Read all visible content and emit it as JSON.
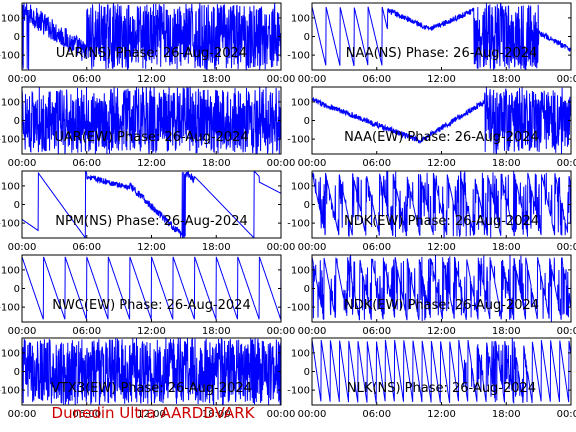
{
  "figure": {
    "footer": "Dunedin Ultra AARDDVARK",
    "colors": {
      "trace": "#0000ff",
      "axis": "#000000",
      "footer": "#cc0000"
    }
  },
  "chart_data": [
    {
      "type": "line",
      "title": "UAR(NS) Phase: 26-Aug-2024",
      "pattern": "dense_late",
      "xlim": [
        0,
        24
      ],
      "ylim": [
        -180,
        180
      ],
      "xticks": [
        "00:00",
        "06:00",
        "12:00",
        "18:00",
        "00:00"
      ],
      "yticks": [
        100,
        0,
        -100
      ]
    },
    {
      "type": "line",
      "title": "NAA(NS) Phase: 26-Aug-2024",
      "pattern": "vshape_ns",
      "xlim": [
        0,
        24
      ],
      "ylim": [
        -180,
        180
      ],
      "xticks": [
        "00:00",
        "06:00",
        "12:00",
        "18:00",
        "00:00"
      ],
      "yticks": [
        100,
        0,
        -100
      ]
    },
    {
      "type": "line",
      "title": "UAR(EW) Phase: 26-Aug-2024",
      "pattern": "dense",
      "xlim": [
        0,
        24
      ],
      "ylim": [
        -180,
        180
      ],
      "xticks": [
        "00:00",
        "06:00",
        "12:00",
        "18:00",
        "00:00"
      ],
      "yticks": [
        100,
        0,
        -100
      ]
    },
    {
      "type": "line",
      "title": "NAA(EW) Phase: 26-Aug-2024",
      "pattern": "vshape_ew",
      "xlim": [
        0,
        24
      ],
      "ylim": [
        -180,
        180
      ],
      "xticks": [
        "00:00",
        "06:00",
        "12:00",
        "18:00",
        "00:00"
      ],
      "yticks": [
        100,
        0,
        -100
      ]
    },
    {
      "type": "line",
      "title": "NPM(NS) Phase: 26-Aug-2024",
      "pattern": "npm",
      "xlim": [
        0,
        24
      ],
      "ylim": [
        -180,
        180
      ],
      "xticks": [
        "00:00",
        "06:00",
        "12:00",
        "18:00",
        "00:00"
      ],
      "yticks": [
        100,
        0,
        -100
      ]
    },
    {
      "type": "line",
      "title": "NDK(EW) Phase: 26-Aug-2024",
      "pattern": "slant_dense",
      "xlim": [
        0,
        24
      ],
      "ylim": [
        -180,
        180
      ],
      "xticks": [
        "00:00",
        "06:00",
        "12:00",
        "18:00",
        "00:00"
      ],
      "yticks": [
        100,
        0,
        -100
      ]
    },
    {
      "type": "line",
      "title": "NWC(EW) Phase: 26-Aug-2024",
      "pattern": "sawtooth_slow",
      "xlim": [
        0,
        24
      ],
      "ylim": [
        -180,
        180
      ],
      "xticks": [
        "00:00",
        "06:00",
        "12:00",
        "18:00",
        "00:00"
      ],
      "yticks": [
        100,
        0,
        -100
      ]
    },
    {
      "type": "line",
      "title": "NDK(EW) Phase: 26-Aug-2024",
      "pattern": "slant_dense2",
      "xlim": [
        0,
        24
      ],
      "ylim": [
        -180,
        180
      ],
      "xticks": [
        "00:00",
        "06:00",
        "12:00",
        "18:00",
        "00:00"
      ],
      "yticks": [
        100,
        0,
        -100
      ]
    },
    {
      "type": "line",
      "title": "VTX3(EW) Phase: 26-Aug-2024",
      "pattern": "noise",
      "xlim": [
        0,
        24
      ],
      "ylim": [
        -180,
        180
      ],
      "xticks": [
        "00:00",
        "06:00",
        "12:00",
        "18:00",
        "00:00"
      ],
      "yticks": [
        100,
        0,
        -100
      ]
    },
    {
      "type": "line",
      "title": "NLK(NS) Phase: 26-Aug-2024",
      "pattern": "sawtooth_fast",
      "xlim": [
        0,
        24
      ],
      "ylim": [
        -180,
        180
      ],
      "xticks": [
        "00:00",
        "06:00",
        "12:00",
        "18:00",
        "00:00"
      ],
      "yticks": [
        100,
        0,
        -100
      ]
    }
  ]
}
